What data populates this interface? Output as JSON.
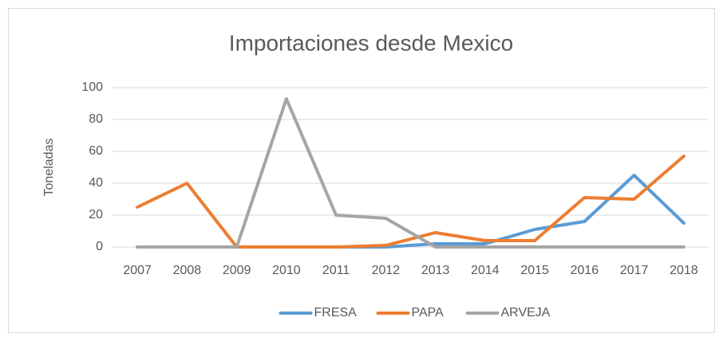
{
  "chart_data": {
    "type": "line",
    "title": "Importaciones desde Mexico",
    "y_label": "Toneladas",
    "categories": [
      "2007",
      "2008",
      "2009",
      "2010",
      "2011",
      "2012",
      "2013",
      "2014",
      "2015",
      "2016",
      "2017",
      "2018"
    ],
    "series": [
      {
        "name": "FRESA",
        "color": "#5b9bd5",
        "values": [
          0,
          0,
          0,
          0,
          0,
          0,
          2,
          2,
          11,
          16,
          45,
          15
        ]
      },
      {
        "name": "PAPA",
        "color": "#ed7d31",
        "values": [
          25,
          40,
          0,
          0,
          0,
          1,
          9,
          4,
          4,
          31,
          30,
          57
        ]
      },
      {
        "name": "ARVEJA",
        "color": "#a5a5a5",
        "values": [
          0,
          0,
          0,
          93,
          20,
          18,
          0,
          0,
          0,
          0,
          0,
          0
        ]
      }
    ],
    "ylim": [
      0,
      100
    ],
    "yticks": [
      0,
      20,
      40,
      60,
      80,
      100
    ],
    "grid": true,
    "legend": "bottom"
  }
}
